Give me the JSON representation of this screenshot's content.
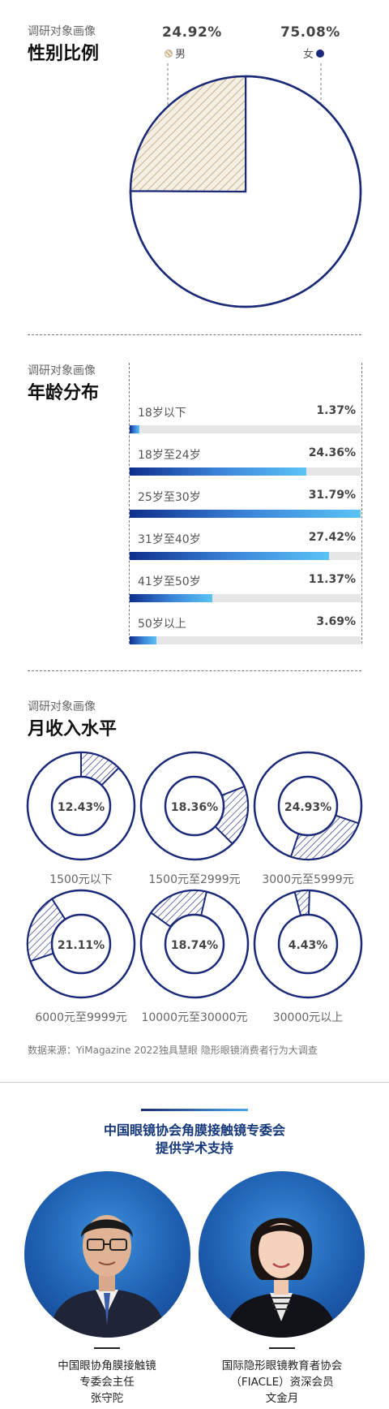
{
  "gender": {
    "subtitle": "调研对象画像",
    "title": "性别比例",
    "male": {
      "pct": "24.92%",
      "label": "男"
    },
    "female": {
      "pct": "75.08%",
      "label": "女"
    }
  },
  "age": {
    "subtitle": "调研对象画像",
    "title": "年龄分布"
  },
  "income": {
    "subtitle": "调研对象画像",
    "title": "月收入水平"
  },
  "source": "数据来源：YiMagazine 2022独具慧眼 隐形眼镜消费者行为大调查",
  "support": {
    "line1": "中国眼镜协会角膜接触镜专委会",
    "line2": "提供学术支持",
    "people": [
      {
        "org1": "中国眼协角膜接触镜",
        "org2": "专委会主任",
        "name": "张守陀"
      },
      {
        "org1": "国际隐形眼镜教育者协会",
        "org2": "（FIACLE）资深会员",
        "name": "文金月"
      }
    ]
  },
  "colors": {
    "navy": "#1b2a78",
    "hatch": "#b9a27a",
    "gradient_start": "#0e2f8c",
    "gradient_end": "#5bc3f5"
  },
  "chart_data": [
    {
      "type": "pie",
      "categories": [
        "男",
        "女"
      ],
      "values": [
        24.92,
        75.08
      ],
      "labels": [
        "24.92%",
        "75.08%"
      ],
      "title": "性别比例"
    },
    {
      "type": "bar",
      "orientation": "horizontal",
      "categories": [
        "18岁以下",
        "18岁至24岁",
        "25岁至30岁",
        "31岁至40岁",
        "41岁至50岁",
        "50岁以上"
      ],
      "values": [
        1.37,
        24.36,
        31.79,
        27.42,
        11.37,
        3.69
      ],
      "labels": [
        "1.37%",
        "24.36%",
        "31.79%",
        "27.42%",
        "11.37%",
        "3.69%"
      ],
      "title": "年龄分布"
    },
    {
      "type": "pie",
      "subtype": "donut-small-multiples",
      "categories": [
        "1500元以下",
        "1500元至2999元",
        "3000元至5999元",
        "6000元至9999元",
        "10000元至30000元",
        "30000元以上"
      ],
      "values": [
        12.43,
        18.36,
        24.93,
        21.11,
        18.74,
        4.43
      ],
      "labels": [
        "12.43%",
        "18.36%",
        "24.93%",
        "21.11%",
        "18.74%",
        "4.43%"
      ],
      "title": "月收入水平"
    }
  ]
}
